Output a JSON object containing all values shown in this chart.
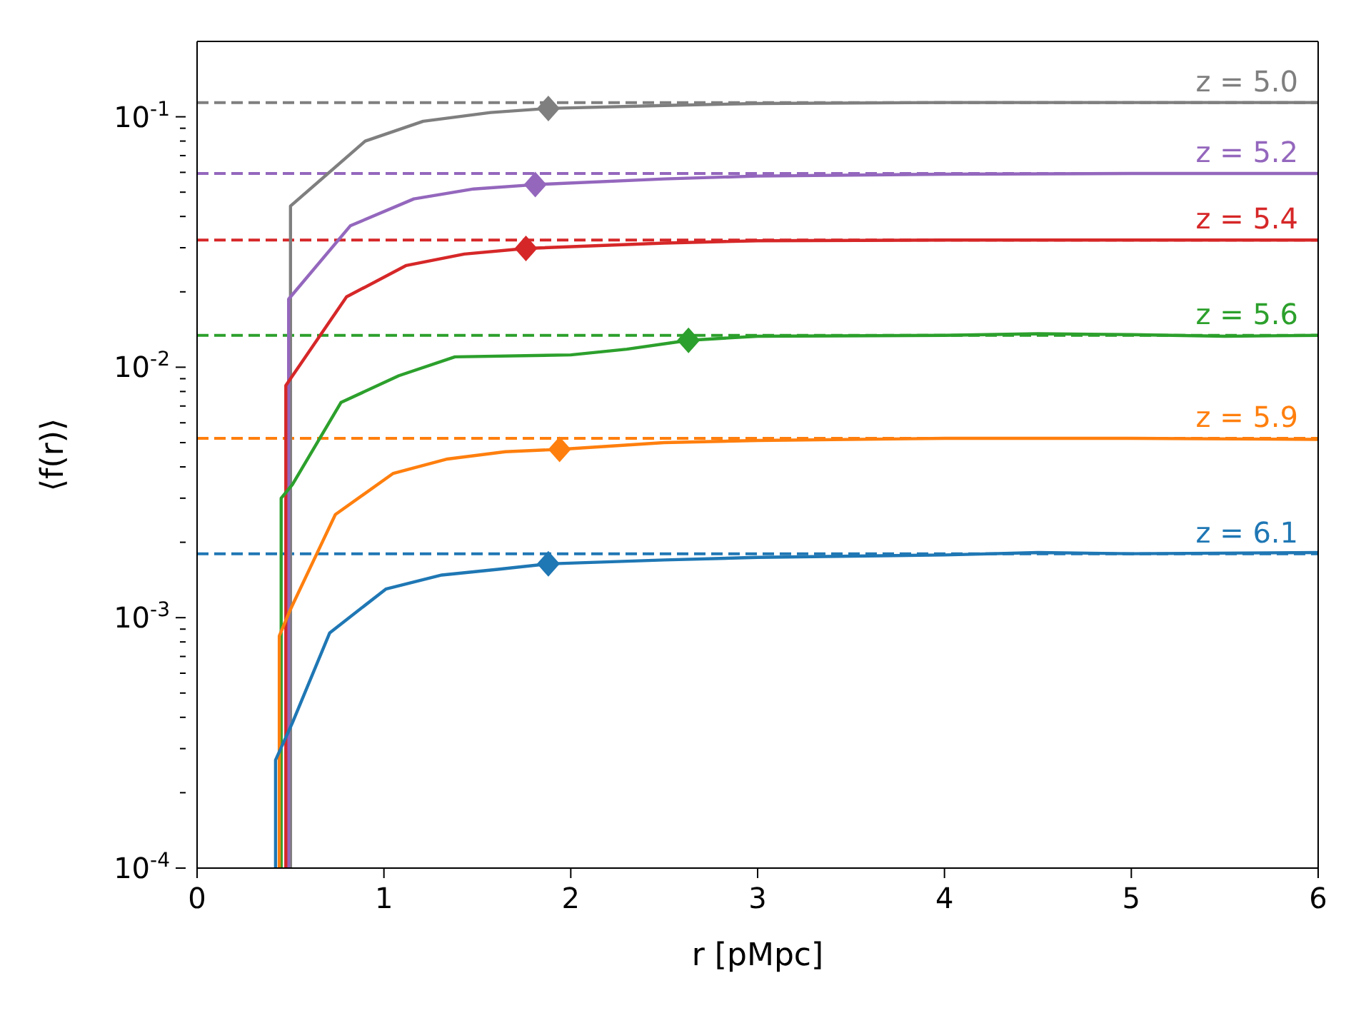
{
  "chart_data": {
    "type": "line",
    "xlabel": "r [pMpc]",
    "ylabel": "⟨f(r)⟩",
    "log": "y",
    "grid": false,
    "xlim": [
      0,
      6
    ],
    "xticks": [
      0,
      1,
      2,
      3,
      4,
      5,
      6
    ],
    "ylim": [
      0.0001,
      0.2
    ],
    "yticks": [
      {
        "value": 0.0001,
        "label": "10$^{-4}$"
      },
      {
        "value": 0.0002,
        "label": null
      },
      {
        "value": 0.0003,
        "label": null
      },
      {
        "value": 0.0004,
        "label": null
      },
      {
        "value": 0.0005,
        "label": null
      },
      {
        "value": 0.0006,
        "label": null
      },
      {
        "value": 0.0007,
        "label": null
      },
      {
        "value": 0.0008,
        "label": null
      },
      {
        "value": 0.0009,
        "label": null
      },
      {
        "value": 0.001,
        "label": "10$^{-3}$"
      },
      {
        "value": 0.002,
        "label": null
      },
      {
        "value": 0.003,
        "label": null
      },
      {
        "value": 0.004,
        "label": null
      },
      {
        "value": 0.005,
        "label": null
      },
      {
        "value": 0.006,
        "label": null
      },
      {
        "value": 0.007,
        "label": null
      },
      {
        "value": 0.008,
        "label": null
      },
      {
        "value": 0.009,
        "label": null
      },
      {
        "value": 0.01,
        "label": "10$^{-2}$"
      },
      {
        "value": 0.02,
        "label": null
      },
      {
        "value": 0.03,
        "label": null
      },
      {
        "value": 0.04,
        "label": null
      },
      {
        "value": 0.05,
        "label": null
      },
      {
        "value": 0.06,
        "label": null
      },
      {
        "value": 0.07,
        "label": null
      },
      {
        "value": 0.08,
        "label": null
      },
      {
        "value": 0.09,
        "label": null
      },
      {
        "value": 0.1,
        "label": "10$^{-1}$"
      }
    ],
    "series": [
      {
        "type": "line",
        "color": "#7f7f7f",
        "x": [
          0.5,
          0.5,
          0.9,
          1.21,
          1.57,
          1.88,
          2.5,
          3,
          4,
          5,
          6
        ],
        "values": [
          0.0001,
          0.044,
          0.08,
          0.096,
          0.104,
          0.108,
          0.111,
          0.113,
          0.114,
          0.114,
          0.114
        ]
      },
      {
        "type": "line",
        "color": "#9467bd",
        "x": [
          0.49,
          0.49,
          0.82,
          1.16,
          1.48,
          1.81,
          2.5,
          3,
          4,
          5,
          6
        ],
        "values": [
          0.0001,
          0.0187,
          0.0367,
          0.047,
          0.0515,
          0.0536,
          0.0565,
          0.058,
          0.059,
          0.0594,
          0.0594
        ]
      },
      {
        "type": "line",
        "color": "#d62728",
        "x": [
          0.475,
          0.475,
          0.8,
          1.12,
          1.43,
          1.76,
          2.5,
          3,
          4,
          5,
          6
        ],
        "values": [
          0.0001,
          0.00845,
          0.0191,
          0.0255,
          0.0283,
          0.0298,
          0.0313,
          0.032,
          0.0322,
          0.0322,
          0.0322
        ]
      },
      {
        "type": "line",
        "color": "#2ca02c",
        "x": [
          0.45,
          0.45,
          0.51,
          0.77,
          1.08,
          1.38,
          2.0,
          2.3,
          2.63,
          3,
          4,
          4.5,
          5,
          5.5,
          6
        ],
        "values": [
          0.0001,
          0.003,
          0.0034,
          0.00723,
          0.00925,
          0.011,
          0.0112,
          0.0118,
          0.0128,
          0.0133,
          0.0134,
          0.0136,
          0.0135,
          0.0133,
          0.0134
        ]
      },
      {
        "type": "line",
        "color": "#ff7f0e",
        "x": [
          0.44,
          0.44,
          0.5,
          0.74,
          1.05,
          1.34,
          1.65,
          1.94,
          2.5,
          3,
          4,
          5,
          6
        ],
        "values": [
          0.0001,
          0.000845,
          0.00108,
          0.00258,
          0.00377,
          0.0043,
          0.0046,
          0.0047,
          0.005,
          0.0051,
          0.0052,
          0.0052,
          0.00515
        ]
      },
      {
        "type": "line",
        "color": "#1f77b4",
        "x": [
          0.42,
          0.42,
          0.51,
          0.71,
          1.01,
          1.31,
          1.61,
          1.88,
          2.5,
          3,
          4,
          4.5,
          5,
          6
        ],
        "values": [
          0.0001,
          0.00027,
          0.00038,
          0.00087,
          0.0013,
          0.00148,
          0.00156,
          0.00164,
          0.0017,
          0.00174,
          0.00178,
          0.00182,
          0.0018,
          0.00182
        ]
      },
      {
        "type": "scatter",
        "marker": "diamond",
        "color": "#7f7f7f",
        "x": [
          1.88
        ],
        "values": [
          0.108
        ]
      },
      {
        "type": "scatter",
        "marker": "diamond",
        "color": "#9467bd",
        "x": [
          1.81
        ],
        "values": [
          0.0536
        ]
      },
      {
        "type": "scatter",
        "marker": "diamond",
        "color": "#d62728",
        "x": [
          1.76
        ],
        "values": [
          0.0298
        ]
      },
      {
        "type": "scatter",
        "marker": "diamond",
        "color": "#2ca02c",
        "x": [
          2.63
        ],
        "values": [
          0.0128
        ]
      },
      {
        "type": "scatter",
        "marker": "diamond",
        "color": "#ff7f0e",
        "x": [
          1.94
        ],
        "values": [
          0.0047
        ]
      },
      {
        "type": "scatter",
        "marker": "diamond",
        "color": "#1f77b4",
        "x": [
          1.88
        ],
        "values": [
          0.00164
        ]
      }
    ],
    "ref_lines": [
      {
        "axis": "y",
        "value": 0.114,
        "color": "#7f7f7f",
        "line_style": "dashed"
      },
      {
        "axis": "y",
        "value": 0.0594,
        "color": "#9467bd",
        "line_style": "dashed"
      },
      {
        "axis": "y",
        "value": 0.0322,
        "color": "#d62728",
        "line_style": "dashed"
      },
      {
        "axis": "y",
        "value": 0.0134,
        "color": "#2ca02c",
        "line_style": "dashed"
      },
      {
        "axis": "y",
        "value": 0.0052,
        "color": "#ff7f0e",
        "line_style": "dashed"
      },
      {
        "axis": "y",
        "value": 0.0018,
        "color": "#1f77b4",
        "line_style": "dashed"
      }
    ],
    "annotations": [
      {
        "text": "z = 5.0",
        "y": 0.114
      },
      {
        "text": "z = 5.2",
        "y": 0.0594
      },
      {
        "text": "z = 5.4",
        "y": 0.0322
      },
      {
        "text": "z = 5.6",
        "y": 0.0134
      },
      {
        "text": "z = 5.9",
        "y": 0.0052
      },
      {
        "text": "z = 6.1",
        "y": 0.0018
      }
    ]
  }
}
